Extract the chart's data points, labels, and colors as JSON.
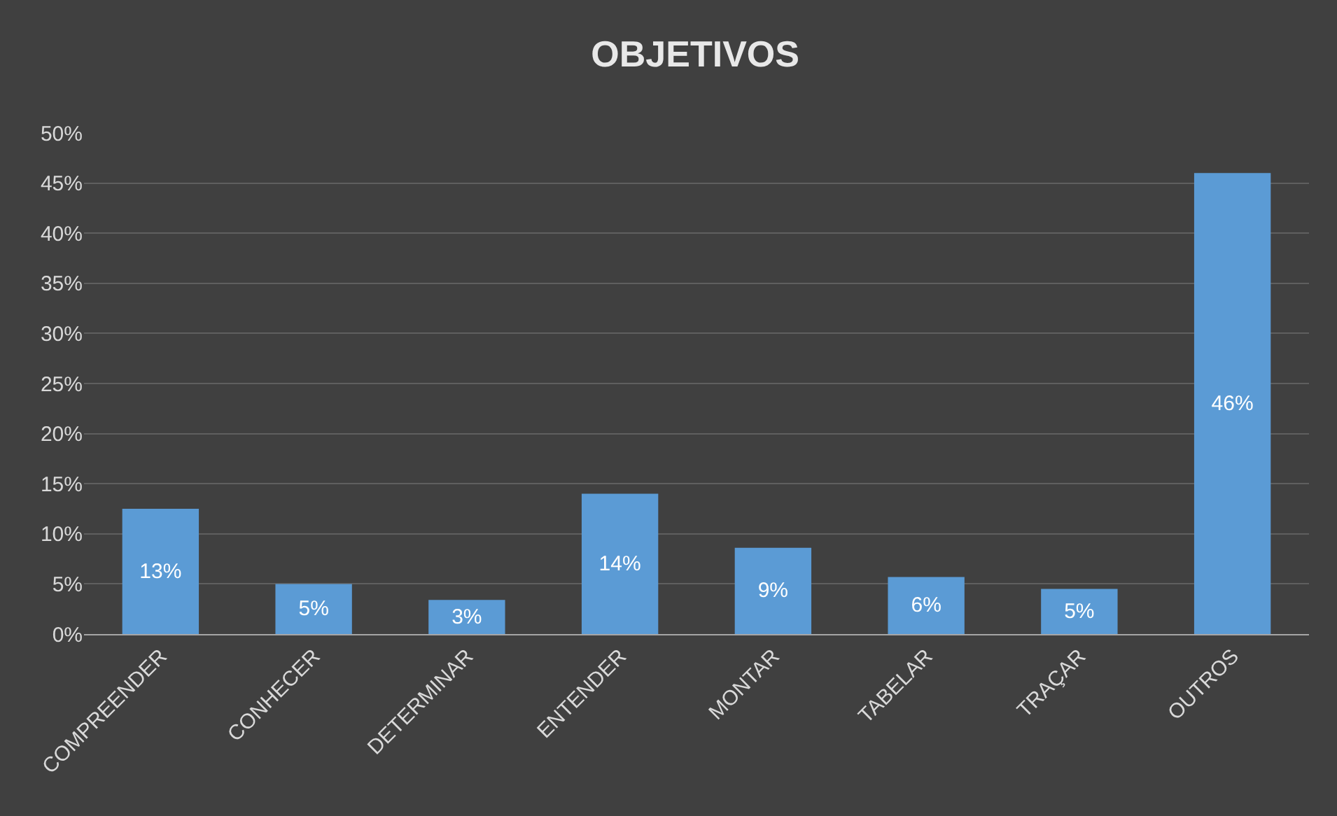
{
  "chart_data": {
    "type": "bar",
    "title": "OBJETIVOS",
    "categories": [
      "COMPREENDER",
      "CONHECER",
      "DETERMINAR",
      "ENTENDER",
      "MONTAR",
      "TABELAR",
      "TRAÇAR",
      "OUTROS"
    ],
    "values": [
      12.5,
      5,
      3.4,
      14,
      8.6,
      5.7,
      4.5,
      46
    ],
    "value_labels": [
      "13%",
      "5%",
      "3%",
      "14%",
      "9%",
      "6%",
      "5%",
      "46%"
    ],
    "color": "#5b9bd5",
    "ylim": [
      0,
      50
    ],
    "yticks": [
      {
        "value": 0,
        "label": "0%"
      },
      {
        "value": 5,
        "label": "5%"
      },
      {
        "value": 10,
        "label": "10%"
      },
      {
        "value": 15,
        "label": "15%"
      },
      {
        "value": 20,
        "label": "20%"
      },
      {
        "value": 25,
        "label": "25%"
      },
      {
        "value": 30,
        "label": "30%"
      },
      {
        "value": 35,
        "label": "35%"
      },
      {
        "value": 40,
        "label": "40%"
      },
      {
        "value": 45,
        "label": "45%"
      },
      {
        "value": 50,
        "label": "50%"
      }
    ],
    "grid": "y",
    "legend": false
  }
}
